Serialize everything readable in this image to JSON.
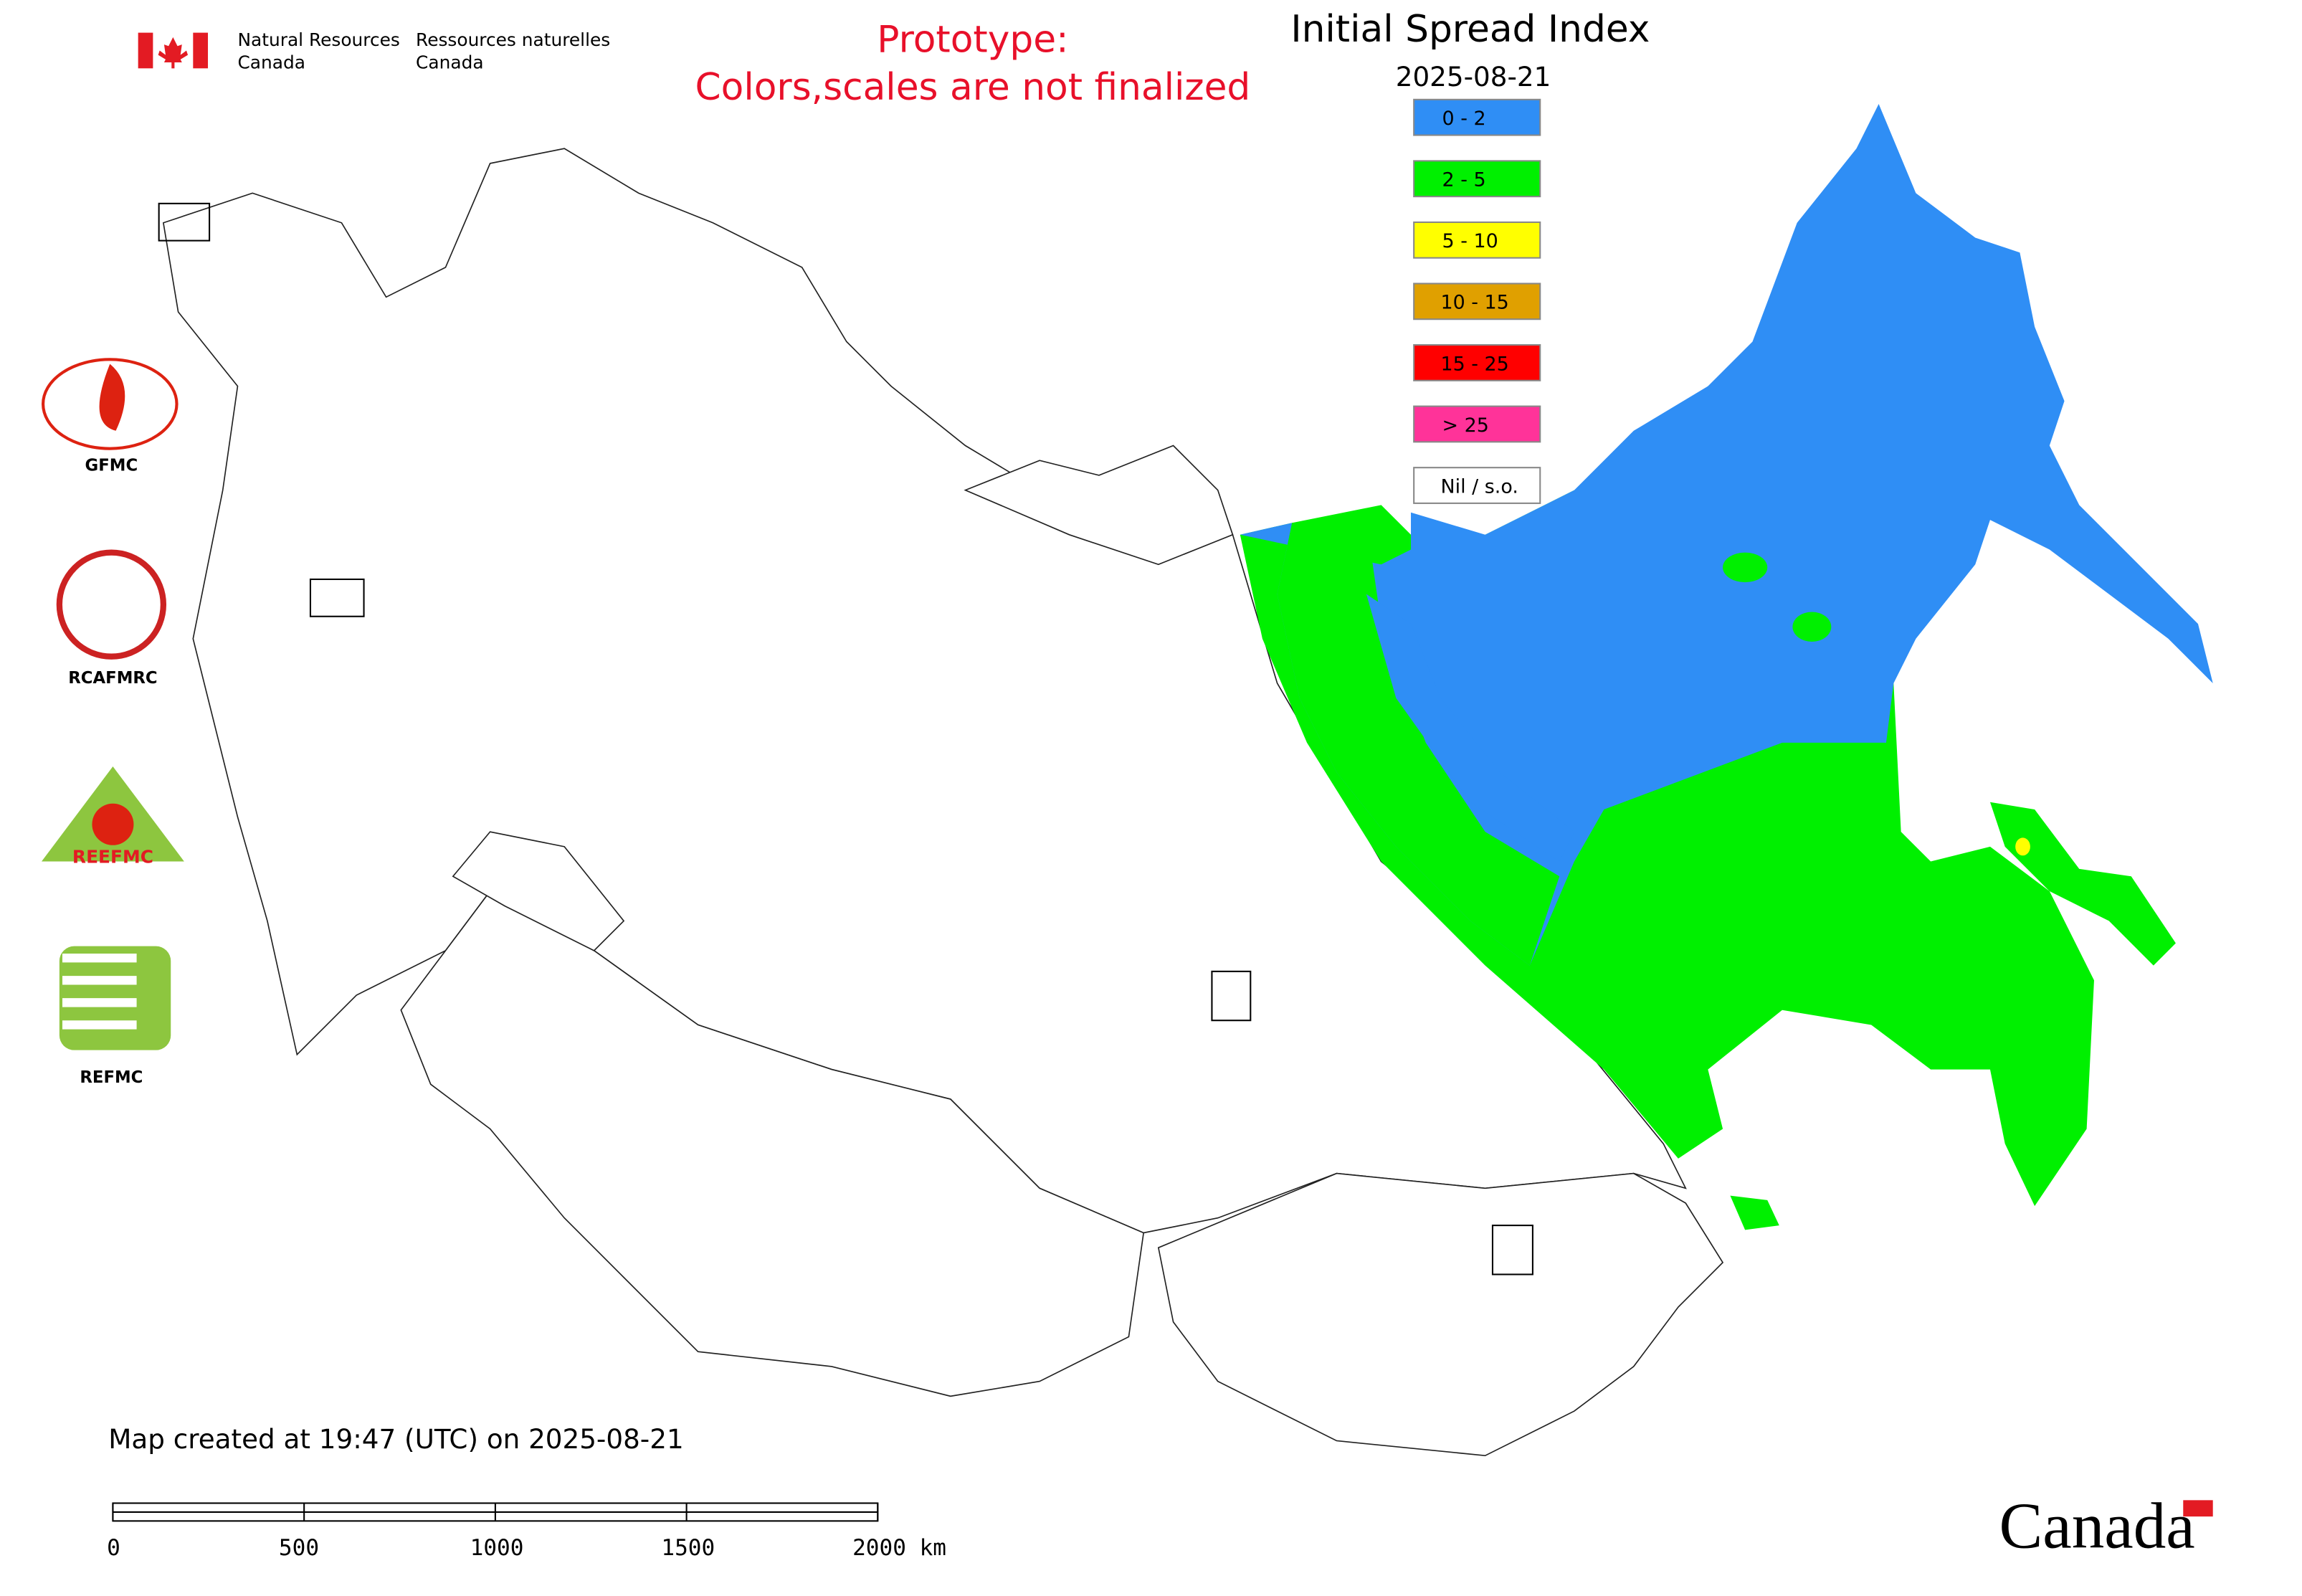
{
  "header": {
    "agency_en": [
      "Natural Resources",
      "Canada"
    ],
    "agency_fr": [
      "Ressources naturelles",
      "Canada"
    ]
  },
  "notice": [
    "Prototype:",
    "Colors,scales are not finalized"
  ],
  "title": "Initial Spread Index",
  "date": "2025-08-21",
  "legend": [
    {
      "label": "0 - 2",
      "color": "#2f8ef5"
    },
    {
      "label": "2 - 5",
      "color": "#00f000"
    },
    {
      "label": "5 - 10",
      "color": "#ffff00"
    },
    {
      "label": "10 - 15",
      "color": "#e0a000"
    },
    {
      "label": "15 - 25",
      "color": "#ff0000"
    },
    {
      "label": "> 25",
      "color": "#ff3399"
    },
    {
      "label": "Nil / s.o.",
      "color": "#ffffff"
    }
  ],
  "logos": [
    "GFMC",
    "RCAFMRC",
    "REEFMC",
    "REFMC"
  ],
  "footer": "Map created at 19:47 (UTC) on 2025-08-21",
  "scale_bar": [
    "0",
    "500",
    "1000",
    "1500",
    "2000 km"
  ],
  "wordmark": "Canada"
}
